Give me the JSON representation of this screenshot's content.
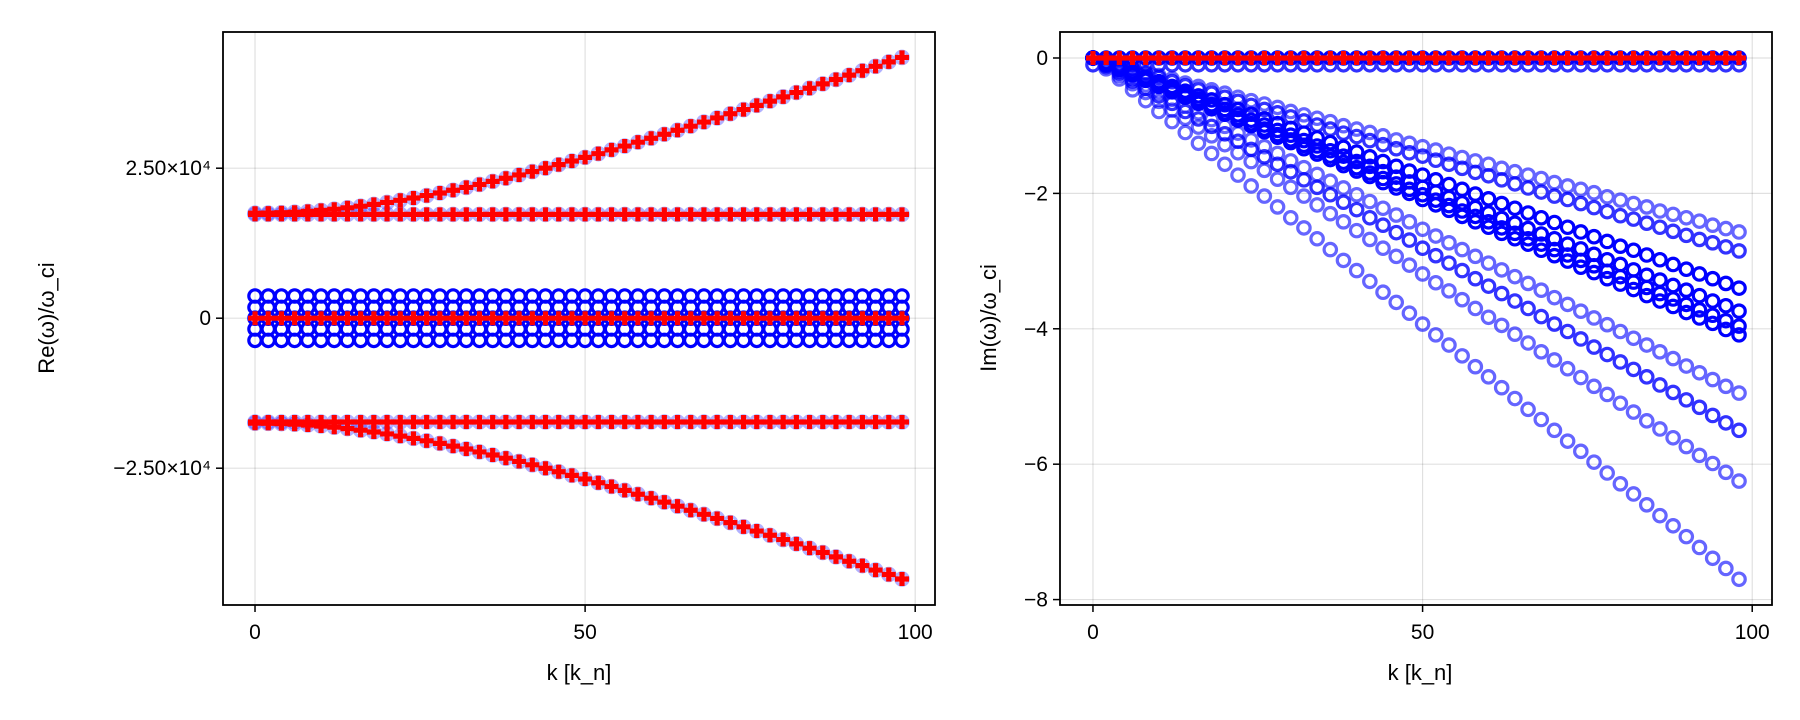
{
  "chart_data": [
    {
      "type": "scatter",
      "xlabel": "k [k_n]",
      "ylabel": "Re(ω)/ω_ci",
      "xlim": [
        -4.85,
        103
      ],
      "ylim": [
        -47800,
        47700
      ],
      "grid": true,
      "xticks": [
        {
          "v": 0,
          "label": "0"
        },
        {
          "v": 50,
          "label": "50"
        },
        {
          "v": 100,
          "label": "100"
        }
      ],
      "yticks": [
        {
          "v": 25000,
          "label": "2.50×10⁴"
        },
        {
          "v": 0,
          "label": "0"
        },
        {
          "v": -25000,
          "label": "−2.50×10⁴"
        }
      ],
      "x_start": 0,
      "x_step": 2,
      "n_points": 50,
      "series": [
        {
          "marker": "circle",
          "color": "#0000ff",
          "alpha": 1.0,
          "y": 3700
        },
        {
          "marker": "circle",
          "color": "#0000ff",
          "alpha": 1.0,
          "y": 1800
        },
        {
          "marker": "circle",
          "color": "#0000ff",
          "alpha": 1.0,
          "y": 0
        },
        {
          "marker": "circle",
          "color": "#0000ff",
          "alpha": 1.0,
          "y": -1800
        },
        {
          "marker": "circle",
          "color": "#0000ff",
          "alpha": 1.0,
          "y": -3700
        },
        {
          "marker": "circle",
          "color": "#0000ff",
          "alpha": 0.3,
          "y": 17300
        },
        {
          "marker": "circle",
          "color": "#0000ff",
          "alpha": 0.3,
          "y": -17300
        },
        {
          "marker": "circle",
          "color": "#0000ff",
          "alpha": 0.3,
          "y": [
            17500,
            17519,
            17575,
            17668,
            17799,
            17965,
            18166,
            18400,
            18667,
            18965,
            19292,
            19648,
            20030,
            20437,
            20868,
            21321,
            21795,
            22289,
            22801,
            23330,
            23874,
            24434,
            25008,
            25595,
            26194,
            26804,
            27422,
            28052,
            28691,
            29339,
            29994,
            30658,
            31329,
            32005,
            32688,
            33377,
            34071,
            34769,
            35473,
            36181,
            36893,
            37610,
            38330,
            39053,
            39780,
            40510,
            41243,
            41980,
            42718,
            43461
          ]
        },
        {
          "marker": "circle",
          "color": "#0000ff",
          "alpha": 0.3,
          "y": [
            -17500,
            -17519,
            -17575,
            -17668,
            -17799,
            -17965,
            -18166,
            -18400,
            -18667,
            -18965,
            -19292,
            -19648,
            -20030,
            -20437,
            -20868,
            -21321,
            -21795,
            -22289,
            -22801,
            -23330,
            -23874,
            -24434,
            -25008,
            -25595,
            -26194,
            -26804,
            -27422,
            -28052,
            -28691,
            -29339,
            -29994,
            -30658,
            -31329,
            -32005,
            -32688,
            -33377,
            -34071,
            -34769,
            -35473,
            -36181,
            -36893,
            -37610,
            -38330,
            -39053,
            -39780,
            -40510,
            -41243,
            -41980,
            -42718,
            -43461
          ]
        },
        {
          "marker": "plus",
          "color": "#ff0000",
          "alpha": 1.0,
          "y": 0
        },
        {
          "marker": "plus",
          "color": "#ff0000",
          "alpha": 1.0,
          "y": 17300
        },
        {
          "marker": "plus",
          "color": "#ff0000",
          "alpha": 1.0,
          "y": -17300
        },
        {
          "marker": "plus",
          "color": "#ff0000",
          "alpha": 1.0,
          "y": [
            17500,
            17519,
            17575,
            17668,
            17799,
            17965,
            18166,
            18400,
            18667,
            18965,
            19292,
            19648,
            20030,
            20437,
            20868,
            21321,
            21795,
            22289,
            22801,
            23330,
            23874,
            24434,
            25008,
            25595,
            26194,
            26804,
            27422,
            28052,
            28691,
            29339,
            29994,
            30658,
            31329,
            32005,
            32688,
            33377,
            34071,
            34769,
            35473,
            36181,
            36893,
            37610,
            38330,
            39053,
            39780,
            40510,
            41243,
            41980,
            42718,
            43461
          ]
        },
        {
          "marker": "plus",
          "color": "#ff0000",
          "alpha": 1.0,
          "y": [
            -17500,
            -17519,
            -17575,
            -17668,
            -17799,
            -17965,
            -18166,
            -18400,
            -18667,
            -18965,
            -19292,
            -19648,
            -20030,
            -20437,
            -20868,
            -21321,
            -21795,
            -22289,
            -22801,
            -23330,
            -23874,
            -24434,
            -25008,
            -25595,
            -26194,
            -26804,
            -27422,
            -28052,
            -28691,
            -29339,
            -29994,
            -30658,
            -31329,
            -32005,
            -32688,
            -33377,
            -34071,
            -34769,
            -35473,
            -36181,
            -36893,
            -37610,
            -38330,
            -39053,
            -39780,
            -40510,
            -41243,
            -41980,
            -42718,
            -43461
          ]
        }
      ]
    },
    {
      "type": "scatter",
      "xlabel": "k [k_n]",
      "ylabel": "Im(ω)/ω_ci",
      "xlim": [
        -5.0,
        103.0
      ],
      "ylim": [
        -8.08,
        0.384
      ],
      "grid": true,
      "xticks": [
        {
          "v": 0,
          "label": "0"
        },
        {
          "v": 50,
          "label": "50"
        },
        {
          "v": 100,
          "label": "100"
        }
      ],
      "yticks": [
        {
          "v": 0,
          "label": "0"
        },
        {
          "v": -2,
          "label": "−2"
        },
        {
          "v": -4,
          "label": "−4"
        },
        {
          "v": -6,
          "label": "−6"
        },
        {
          "v": -8,
          "label": "−8"
        }
      ],
      "x_start": 0,
      "x_step": 2,
      "n_points": 50,
      "series": [
        {
          "marker": "circle",
          "color": "#0000ff",
          "alpha": 0.6,
          "y": [
            0,
            -0.05,
            -0.1,
            -0.16,
            -0.21,
            -0.26,
            -0.31,
            -0.37,
            -0.42,
            -0.47,
            -0.52,
            -0.58,
            -0.63,
            -0.68,
            -0.73,
            -0.79,
            -0.84,
            -0.89,
            -0.94,
            -1.0,
            -1.05,
            -1.1,
            -1.15,
            -1.21,
            -1.26,
            -1.31,
            -1.36,
            -1.42,
            -1.47,
            -1.52,
            -1.57,
            -1.63,
            -1.68,
            -1.73,
            -1.78,
            -1.84,
            -1.89,
            -1.94,
            -1.99,
            -2.05,
            -2.1,
            -2.15,
            -2.2,
            -2.26,
            -2.31,
            -2.36,
            -2.41,
            -2.47,
            -2.52,
            -2.57
          ]
        },
        {
          "marker": "circle",
          "color": "#0000ff",
          "alpha": 0.8,
          "y": [
            0,
            -0.06,
            -0.12,
            -0.17,
            -0.23,
            -0.29,
            -0.35,
            -0.41,
            -0.47,
            -0.52,
            -0.58,
            -0.64,
            -0.7,
            -0.76,
            -0.81,
            -0.87,
            -0.93,
            -0.99,
            -1.05,
            -1.11,
            -1.16,
            -1.22,
            -1.28,
            -1.34,
            -1.4,
            -1.45,
            -1.51,
            -1.57,
            -1.63,
            -1.69,
            -1.74,
            -1.8,
            -1.86,
            -1.92,
            -1.98,
            -2.04,
            -2.09,
            -2.15,
            -2.21,
            -2.27,
            -2.33,
            -2.38,
            -2.44,
            -2.5,
            -2.56,
            -2.62,
            -2.68,
            -2.73,
            -2.79,
            -2.85
          ]
        },
        {
          "marker": "circle",
          "color": "#0000ff",
          "alpha": 1.0,
          "y": [
            0,
            -0.07,
            -0.14,
            -0.21,
            -0.28,
            -0.35,
            -0.42,
            -0.49,
            -0.56,
            -0.62,
            -0.69,
            -0.76,
            -0.83,
            -0.9,
            -0.97,
            -1.04,
            -1.11,
            -1.18,
            -1.25,
            -1.32,
            -1.39,
            -1.46,
            -1.53,
            -1.6,
            -1.67,
            -1.73,
            -1.8,
            -1.87,
            -1.94,
            -2.01,
            -2.08,
            -2.15,
            -2.22,
            -2.29,
            -2.36,
            -2.43,
            -2.5,
            -2.57,
            -2.64,
            -2.71,
            -2.78,
            -2.84,
            -2.91,
            -2.98,
            -3.05,
            -3.12,
            -3.19,
            -3.26,
            -3.33,
            -3.4
          ]
        },
        {
          "marker": "circle",
          "color": "#0000ff",
          "alpha": 1.0,
          "y": [
            0,
            -0.08,
            -0.15,
            -0.23,
            -0.31,
            -0.38,
            -0.46,
            -0.53,
            -0.61,
            -0.69,
            -0.76,
            -0.84,
            -0.92,
            -0.99,
            -1.07,
            -1.14,
            -1.22,
            -1.3,
            -1.37,
            -1.45,
            -1.53,
            -1.6,
            -1.68,
            -1.76,
            -1.83,
            -1.91,
            -1.98,
            -2.06,
            -2.14,
            -2.21,
            -2.29,
            -2.37,
            -2.44,
            -2.52,
            -2.6,
            -2.67,
            -2.75,
            -2.82,
            -2.9,
            -2.98,
            -3.05,
            -3.13,
            -3.21,
            -3.28,
            -3.36,
            -3.43,
            -3.51,
            -3.59,
            -3.66,
            -3.74
          ]
        },
        {
          "marker": "circle",
          "color": "#0000ff",
          "alpha": 1.0,
          "y": [
            0,
            -0.08,
            -0.16,
            -0.24,
            -0.32,
            -0.4,
            -0.48,
            -0.57,
            -0.65,
            -0.73,
            -0.81,
            -0.89,
            -0.97,
            -1.05,
            -1.13,
            -1.21,
            -1.29,
            -1.37,
            -1.45,
            -1.54,
            -1.62,
            -1.7,
            -1.78,
            -1.86,
            -1.94,
            -2.02,
            -2.1,
            -2.18,
            -2.26,
            -2.34,
            -2.42,
            -2.51,
            -2.59,
            -2.67,
            -2.75,
            -2.83,
            -2.91,
            -2.99,
            -3.07,
            -3.15,
            -3.23,
            -3.31,
            -3.39,
            -3.48,
            -3.56,
            -3.64,
            -3.72,
            -3.8,
            -3.88,
            -3.96
          ]
        },
        {
          "marker": "circle",
          "color": "#0000ff",
          "alpha": 1.0,
          "y": [
            0,
            -0.08,
            -0.17,
            -0.25,
            -0.33,
            -0.42,
            -0.5,
            -0.58,
            -0.67,
            -0.75,
            -0.83,
            -0.92,
            -1.0,
            -1.09,
            -1.17,
            -1.25,
            -1.34,
            -1.42,
            -1.5,
            -1.59,
            -1.67,
            -1.75,
            -1.84,
            -1.92,
            -2.0,
            -2.09,
            -2.17,
            -2.25,
            -2.34,
            -2.42,
            -2.5,
            -2.59,
            -2.67,
            -2.75,
            -2.84,
            -2.92,
            -3.0,
            -3.09,
            -3.17,
            -3.26,
            -3.34,
            -3.42,
            -3.51,
            -3.59,
            -3.67,
            -3.76,
            -3.84,
            -3.92,
            -4.01,
            -4.09
          ]
        },
        {
          "marker": "circle",
          "color": "#0000ff",
          "alpha": 0.6,
          "y": [
            0,
            -0.1,
            -0.2,
            -0.3,
            -0.4,
            -0.51,
            -0.61,
            -0.71,
            -0.81,
            -0.91,
            -1.01,
            -1.11,
            -1.21,
            -1.31,
            -1.41,
            -1.52,
            -1.62,
            -1.72,
            -1.82,
            -1.92,
            -2.02,
            -2.12,
            -2.22,
            -2.32,
            -2.42,
            -2.53,
            -2.63,
            -2.73,
            -2.83,
            -2.93,
            -3.03,
            -3.13,
            -3.23,
            -3.33,
            -3.43,
            -3.54,
            -3.64,
            -3.74,
            -3.84,
            -3.94,
            -4.04,
            -4.14,
            -4.24,
            -4.34,
            -4.44,
            -4.55,
            -4.65,
            -4.75,
            -4.85,
            -4.95
          ]
        },
        {
          "marker": "circle",
          "color": "#0000ff",
          "alpha": 0.8,
          "y": [
            0,
            -0.11,
            -0.22,
            -0.34,
            -0.45,
            -0.56,
            -0.67,
            -0.79,
            -0.9,
            -1.01,
            -1.12,
            -1.23,
            -1.35,
            -1.46,
            -1.57,
            -1.68,
            -1.8,
            -1.91,
            -2.02,
            -2.13,
            -2.24,
            -2.36,
            -2.47,
            -2.58,
            -2.69,
            -2.81,
            -2.92,
            -3.03,
            -3.14,
            -3.26,
            -3.37,
            -3.48,
            -3.59,
            -3.7,
            -3.82,
            -3.93,
            -4.04,
            -4.15,
            -4.27,
            -4.38,
            -4.49,
            -4.6,
            -4.71,
            -4.83,
            -4.94,
            -5.05,
            -5.16,
            -5.28,
            -5.39,
            -5.5
          ]
        },
        {
          "marker": "circle",
          "color": "#0000ff",
          "alpha": 0.6,
          "y": [
            0,
            -0.13,
            -0.26,
            -0.38,
            -0.51,
            -0.64,
            -0.77,
            -0.89,
            -1.02,
            -1.15,
            -1.28,
            -1.4,
            -1.53,
            -1.66,
            -1.79,
            -1.91,
            -2.04,
            -2.17,
            -2.3,
            -2.42,
            -2.55,
            -2.68,
            -2.81,
            -2.93,
            -3.06,
            -3.19,
            -3.32,
            -3.44,
            -3.57,
            -3.7,
            -3.83,
            -3.95,
            -4.08,
            -4.21,
            -4.34,
            -4.46,
            -4.59,
            -4.72,
            -4.85,
            -4.97,
            -5.1,
            -5.23,
            -5.36,
            -5.48,
            -5.61,
            -5.74,
            -5.87,
            -5.99,
            -6.12,
            -6.25
          ]
        },
        {
          "marker": "circle",
          "color": "#0000ff",
          "alpha": 0.6,
          "y": [
            0,
            -0.16,
            -0.31,
            -0.47,
            -0.63,
            -0.79,
            -0.94,
            -1.1,
            -1.26,
            -1.41,
            -1.57,
            -1.73,
            -1.89,
            -2.04,
            -2.2,
            -2.36,
            -2.51,
            -2.67,
            -2.83,
            -2.99,
            -3.14,
            -3.3,
            -3.46,
            -3.61,
            -3.77,
            -3.93,
            -4.09,
            -4.24,
            -4.4,
            -4.56,
            -4.71,
            -4.87,
            -5.03,
            -5.19,
            -5.34,
            -5.5,
            -5.66,
            -5.81,
            -5.97,
            -6.13,
            -6.29,
            -6.44,
            -6.6,
            -6.76,
            -6.91,
            -7.07,
            -7.23,
            -7.39,
            -7.54,
            -7.7
          ]
        },
        {
          "marker": "circle",
          "color": "#0000ff",
          "alpha": 0.8,
          "y": -0.1
        },
        {
          "marker": "circle",
          "color": "#0000ff",
          "alpha": 1.0,
          "y": 0
        },
        {
          "marker": "plus",
          "color": "#ff0000",
          "alpha": 1.0,
          "y": 0
        }
      ]
    }
  ]
}
